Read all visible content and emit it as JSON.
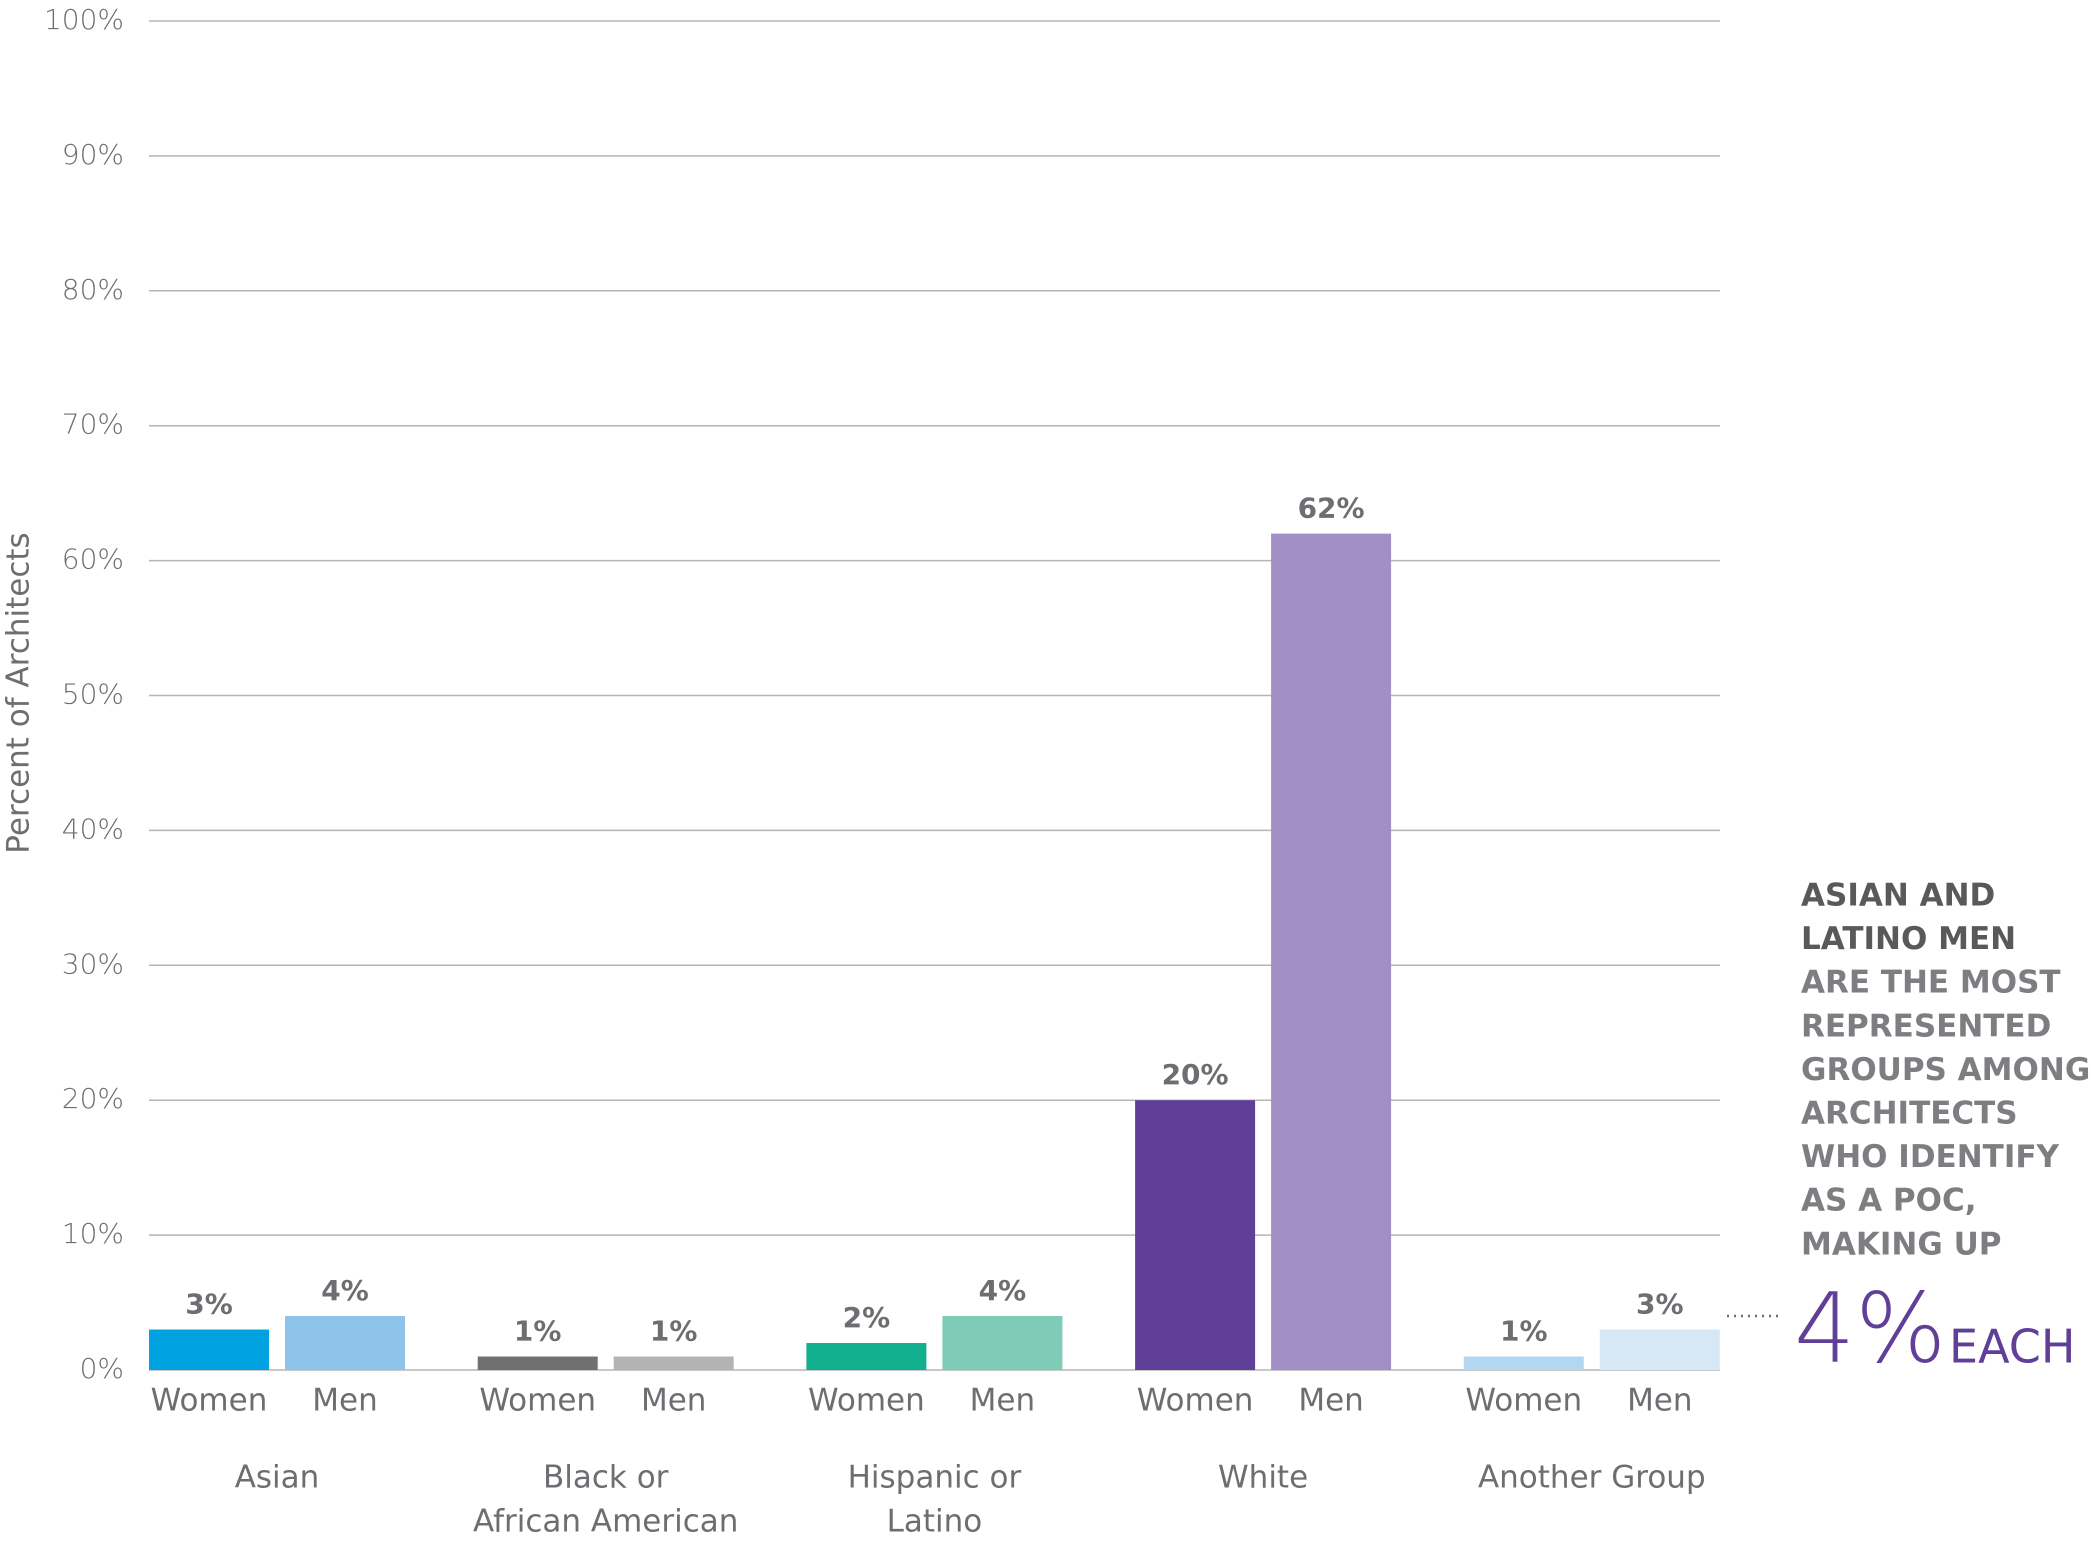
{
  "chart_data": {
    "type": "grouped_bar",
    "y_label": "Percent of Architects",
    "ylim": [
      0,
      100
    ],
    "yticks": [
      {
        "value": 0,
        "label": "0%"
      },
      {
        "value": 10,
        "label": "10%"
      },
      {
        "value": 20,
        "label": "20%"
      },
      {
        "value": 30,
        "label": "30%"
      },
      {
        "value": 40,
        "label": "40%"
      },
      {
        "value": 50,
        "label": "50%"
      },
      {
        "value": 60,
        "label": "60%"
      },
      {
        "value": 70,
        "label": "70%"
      },
      {
        "value": 80,
        "label": "80%"
      },
      {
        "value": 90,
        "label": "90%"
      },
      {
        "value": 100,
        "label": "100%"
      }
    ],
    "grid": true,
    "groups": [
      {
        "name_lines": [
          "Asian"
        ],
        "categories": [
          "Women",
          "Men"
        ],
        "values": [
          3,
          4
        ],
        "value_labels": [
          "3%",
          "4%"
        ],
        "colors": [
          "#00a3e0",
          "#8ec3ea"
        ]
      },
      {
        "name_lines": [
          "Black or",
          "African American"
        ],
        "categories": [
          "Women",
          "Men"
        ],
        "values": [
          1,
          1
        ],
        "value_labels": [
          "1%",
          "1%"
        ],
        "colors": [
          "#707070",
          "#b3b3b3"
        ]
      },
      {
        "name_lines": [
          "Hispanic or",
          "Latino"
        ],
        "categories": [
          "Women",
          "Men"
        ],
        "values": [
          2,
          4
        ],
        "value_labels": [
          "2%",
          "4%"
        ],
        "colors": [
          "#13b08f",
          "#7fcbb8"
        ]
      },
      {
        "name_lines": [
          "White"
        ],
        "categories": [
          "Women",
          "Men"
        ],
        "values": [
          20,
          62
        ],
        "value_labels": [
          "20%",
          "62%"
        ],
        "colors": [
          "#5f3f98",
          "#a18fc6"
        ]
      },
      {
        "name_lines": [
          "Another Group"
        ],
        "categories": [
          "Women",
          "Men"
        ],
        "values": [
          1,
          3
        ],
        "value_labels": [
          "1%",
          "3%"
        ],
        "colors": [
          "#b3d7f0",
          "#d6e8f6"
        ]
      }
    ],
    "annotation": {
      "highlight_lines": [
        "ASIAN AND",
        "LATINO MEN"
      ],
      "lines": [
        "ARE THE MOST",
        "REPRESENTED",
        "GROUPS AMONG",
        "ARCHITECTS",
        "WHO IDENTIFY",
        "AS A POC,",
        "MAKING UP"
      ],
      "big": "4%",
      "suffix": "EACH"
    }
  }
}
